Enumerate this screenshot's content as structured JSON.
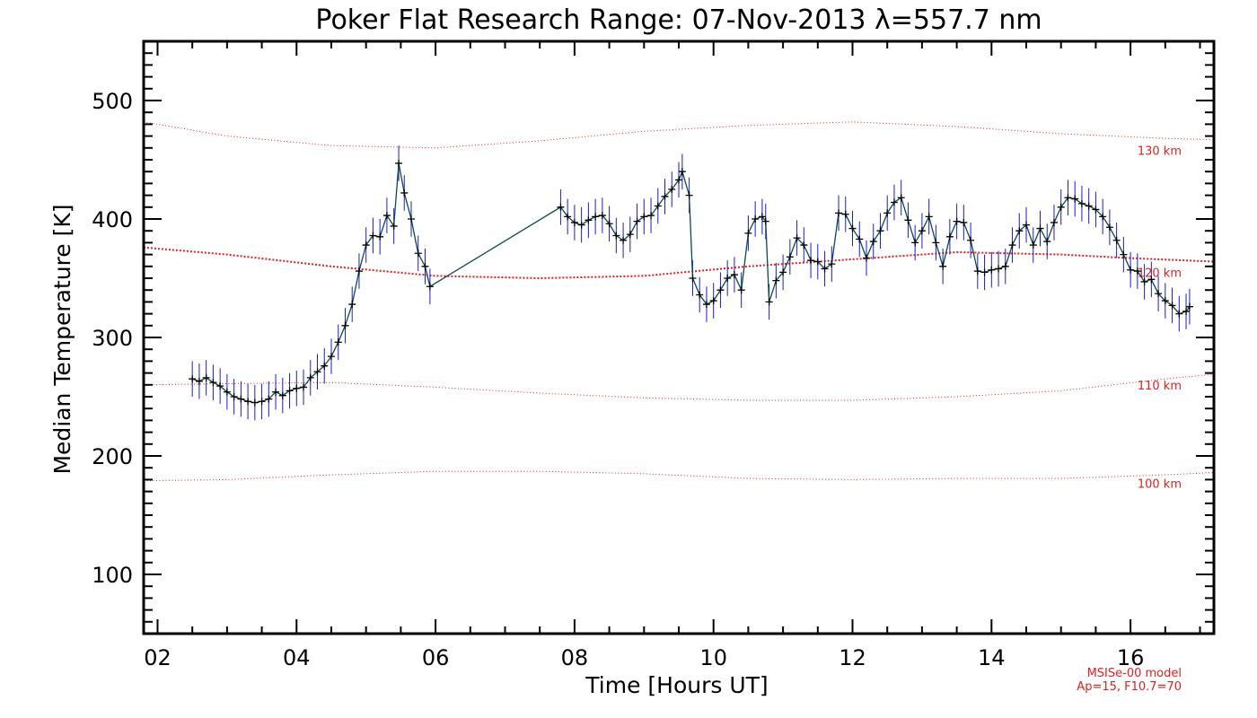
{
  "chart_data": {
    "type": "line",
    "title": "Poker Flat Research Range: 07-Nov-2013 λ=557.7 nm",
    "xlabel": "Time [Hours UT]",
    "ylabel": "Median Temperature [K]",
    "xlim": [
      1.8,
      17.2
    ],
    "ylim": [
      50,
      550
    ],
    "x_ticks": [
      {
        "value": 2,
        "label": "02"
      },
      {
        "value": 4,
        "label": "04"
      },
      {
        "value": 6,
        "label": "06"
      },
      {
        "value": 8,
        "label": "08"
      },
      {
        "value": 10,
        "label": "10"
      },
      {
        "value": 12,
        "label": "12"
      },
      {
        "value": 14,
        "label": "14"
      },
      {
        "value": 16,
        "label": "16"
      }
    ],
    "y_ticks": [
      {
        "value": 100,
        "label": "100"
      },
      {
        "value": 200,
        "label": "200"
      },
      {
        "value": 300,
        "label": "300"
      },
      {
        "value": 400,
        "label": "400"
      },
      {
        "value": 500,
        "label": "500"
      }
    ],
    "x_minor_step": 0.5,
    "y_minor_step": 10,
    "error_bar_halfwidth": 15,
    "series": [
      {
        "color": "#000000",
        "line_color": "#0a4a4a",
        "error_color": "#1a1ad8",
        "points": [
          [
            2.5,
            265
          ],
          [
            2.6,
            263
          ],
          [
            2.7,
            266
          ],
          [
            2.8,
            262
          ],
          [
            2.9,
            259
          ],
          [
            3.0,
            254
          ],
          [
            3.1,
            250
          ],
          [
            3.2,
            248
          ],
          [
            3.3,
            246
          ],
          [
            3.4,
            245
          ],
          [
            3.5,
            246
          ],
          [
            3.6,
            248
          ],
          [
            3.7,
            254
          ],
          [
            3.8,
            251
          ],
          [
            3.9,
            255
          ],
          [
            4.0,
            257
          ],
          [
            4.1,
            258
          ],
          [
            4.2,
            266
          ],
          [
            4.3,
            271
          ],
          [
            4.4,
            276
          ],
          [
            4.5,
            284
          ],
          [
            4.6,
            296
          ],
          [
            4.7,
            310
          ],
          [
            4.8,
            328
          ],
          [
            4.9,
            356
          ],
          [
            5.0,
            378
          ],
          [
            5.1,
            386
          ],
          [
            5.2,
            385
          ],
          [
            5.3,
            403
          ],
          [
            5.4,
            394
          ],
          [
            5.47,
            447
          ],
          [
            5.55,
            422
          ],
          [
            5.65,
            400
          ],
          [
            5.75,
            371
          ],
          [
            5.85,
            360
          ],
          [
            5.92,
            343
          ],
          [
            7.8,
            410
          ],
          [
            7.9,
            402
          ],
          [
            8.0,
            397
          ],
          [
            8.1,
            395
          ],
          [
            8.2,
            399
          ],
          [
            8.3,
            402
          ],
          [
            8.4,
            403
          ],
          [
            8.5,
            396
          ],
          [
            8.6,
            386
          ],
          [
            8.7,
            382
          ],
          [
            8.8,
            387
          ],
          [
            8.9,
            398
          ],
          [
            9.0,
            402
          ],
          [
            9.1,
            403
          ],
          [
            9.2,
            411
          ],
          [
            9.3,
            419
          ],
          [
            9.4,
            425
          ],
          [
            9.5,
            433
          ],
          [
            9.55,
            440
          ],
          [
            9.65,
            420
          ],
          [
            9.7,
            350
          ],
          [
            9.8,
            336
          ],
          [
            9.9,
            328
          ],
          [
            10.0,
            331
          ],
          [
            10.1,
            340
          ],
          [
            10.2,
            350
          ],
          [
            10.3,
            353
          ],
          [
            10.4,
            340
          ],
          [
            10.5,
            388
          ],
          [
            10.6,
            400
          ],
          [
            10.7,
            402
          ],
          [
            10.75,
            398
          ],
          [
            10.8,
            330
          ],
          [
            10.9,
            348
          ],
          [
            11.0,
            355
          ],
          [
            11.1,
            368
          ],
          [
            11.2,
            384
          ],
          [
            11.3,
            378
          ],
          [
            11.4,
            365
          ],
          [
            11.5,
            364
          ],
          [
            11.6,
            358
          ],
          [
            11.7,
            362
          ],
          [
            11.8,
            405
          ],
          [
            11.9,
            404
          ],
          [
            12.0,
            392
          ],
          [
            12.1,
            383
          ],
          [
            12.2,
            367
          ],
          [
            12.3,
            381
          ],
          [
            12.4,
            390
          ],
          [
            12.5,
            405
          ],
          [
            12.6,
            414
          ],
          [
            12.7,
            418
          ],
          [
            12.8,
            399
          ],
          [
            12.9,
            380
          ],
          [
            13.0,
            390
          ],
          [
            13.1,
            402
          ],
          [
            13.2,
            380
          ],
          [
            13.3,
            360
          ],
          [
            13.4,
            385
          ],
          [
            13.5,
            398
          ],
          [
            13.6,
            397
          ],
          [
            13.7,
            382
          ],
          [
            13.8,
            356
          ],
          [
            13.9,
            355
          ],
          [
            14.0,
            357
          ],
          [
            14.1,
            358
          ],
          [
            14.2,
            360
          ],
          [
            14.3,
            378
          ],
          [
            14.4,
            390
          ],
          [
            14.5,
            395
          ],
          [
            14.6,
            378
          ],
          [
            14.7,
            392
          ],
          [
            14.8,
            381
          ],
          [
            14.9,
            397
          ],
          [
            15.0,
            410
          ],
          [
            15.1,
            418
          ],
          [
            15.2,
            417
          ],
          [
            15.3,
            413
          ],
          [
            15.4,
            411
          ],
          [
            15.5,
            408
          ],
          [
            15.6,
            402
          ],
          [
            15.7,
            393
          ],
          [
            15.8,
            382
          ],
          [
            15.9,
            370
          ],
          [
            16.0,
            357
          ],
          [
            16.1,
            356
          ],
          [
            16.2,
            347
          ],
          [
            16.3,
            349
          ],
          [
            16.4,
            337
          ],
          [
            16.5,
            331
          ],
          [
            16.6,
            327
          ],
          [
            16.7,
            320
          ],
          [
            16.8,
            322
          ],
          [
            16.85,
            326
          ]
        ]
      }
    ],
    "model_curves": [
      {
        "name": "130 km",
        "color": "#e02020",
        "width": 1,
        "points": [
          [
            1.8,
            482
          ],
          [
            3,
            470
          ],
          [
            4.5,
            462
          ],
          [
            6,
            460
          ],
          [
            7.5,
            466
          ],
          [
            9,
            474
          ],
          [
            10.5,
            479
          ],
          [
            12,
            482
          ],
          [
            13.5,
            478
          ],
          [
            15,
            472
          ],
          [
            16.5,
            468
          ],
          [
            17.2,
            467
          ]
        ]
      },
      {
        "name": "120 km",
        "color": "#e02020",
        "width": 2,
        "points": [
          [
            1.8,
            376
          ],
          [
            3,
            370
          ],
          [
            4.5,
            360
          ],
          [
            6,
            352
          ],
          [
            7.5,
            350
          ],
          [
            9,
            352
          ],
          [
            10.5,
            360
          ],
          [
            12,
            366
          ],
          [
            13.5,
            372
          ],
          [
            15,
            370
          ],
          [
            16,
            367
          ],
          [
            17.2,
            364
          ]
        ]
      },
      {
        "name": "110 km",
        "color": "#e02020",
        "width": 1,
        "points": [
          [
            1.8,
            260
          ],
          [
            3,
            261
          ],
          [
            4.5,
            262
          ],
          [
            6,
            258
          ],
          [
            7.5,
            253
          ],
          [
            9,
            249
          ],
          [
            10.5,
            247
          ],
          [
            12,
            247
          ],
          [
            13.5,
            250
          ],
          [
            15,
            255
          ],
          [
            16.5,
            265
          ],
          [
            17.2,
            269
          ]
        ]
      },
      {
        "name": "100 km",
        "color": "#e02020",
        "width": 1,
        "points": [
          [
            1.8,
            179
          ],
          [
            3,
            180
          ],
          [
            4.5,
            184
          ],
          [
            6,
            187
          ],
          [
            7.5,
            187
          ],
          [
            9,
            185
          ],
          [
            10.5,
            181
          ],
          [
            12,
            180
          ],
          [
            13.5,
            181
          ],
          [
            15,
            181
          ],
          [
            16.5,
            184
          ],
          [
            17.2,
            186
          ]
        ]
      }
    ],
    "model_curve_labels": [
      "130 km",
      "120 km",
      "110 km",
      "100 km"
    ],
    "footnote": [
      "MSISe-00 model",
      "Ap=15, F10.7=70"
    ],
    "grid": false,
    "legend": "none"
  }
}
